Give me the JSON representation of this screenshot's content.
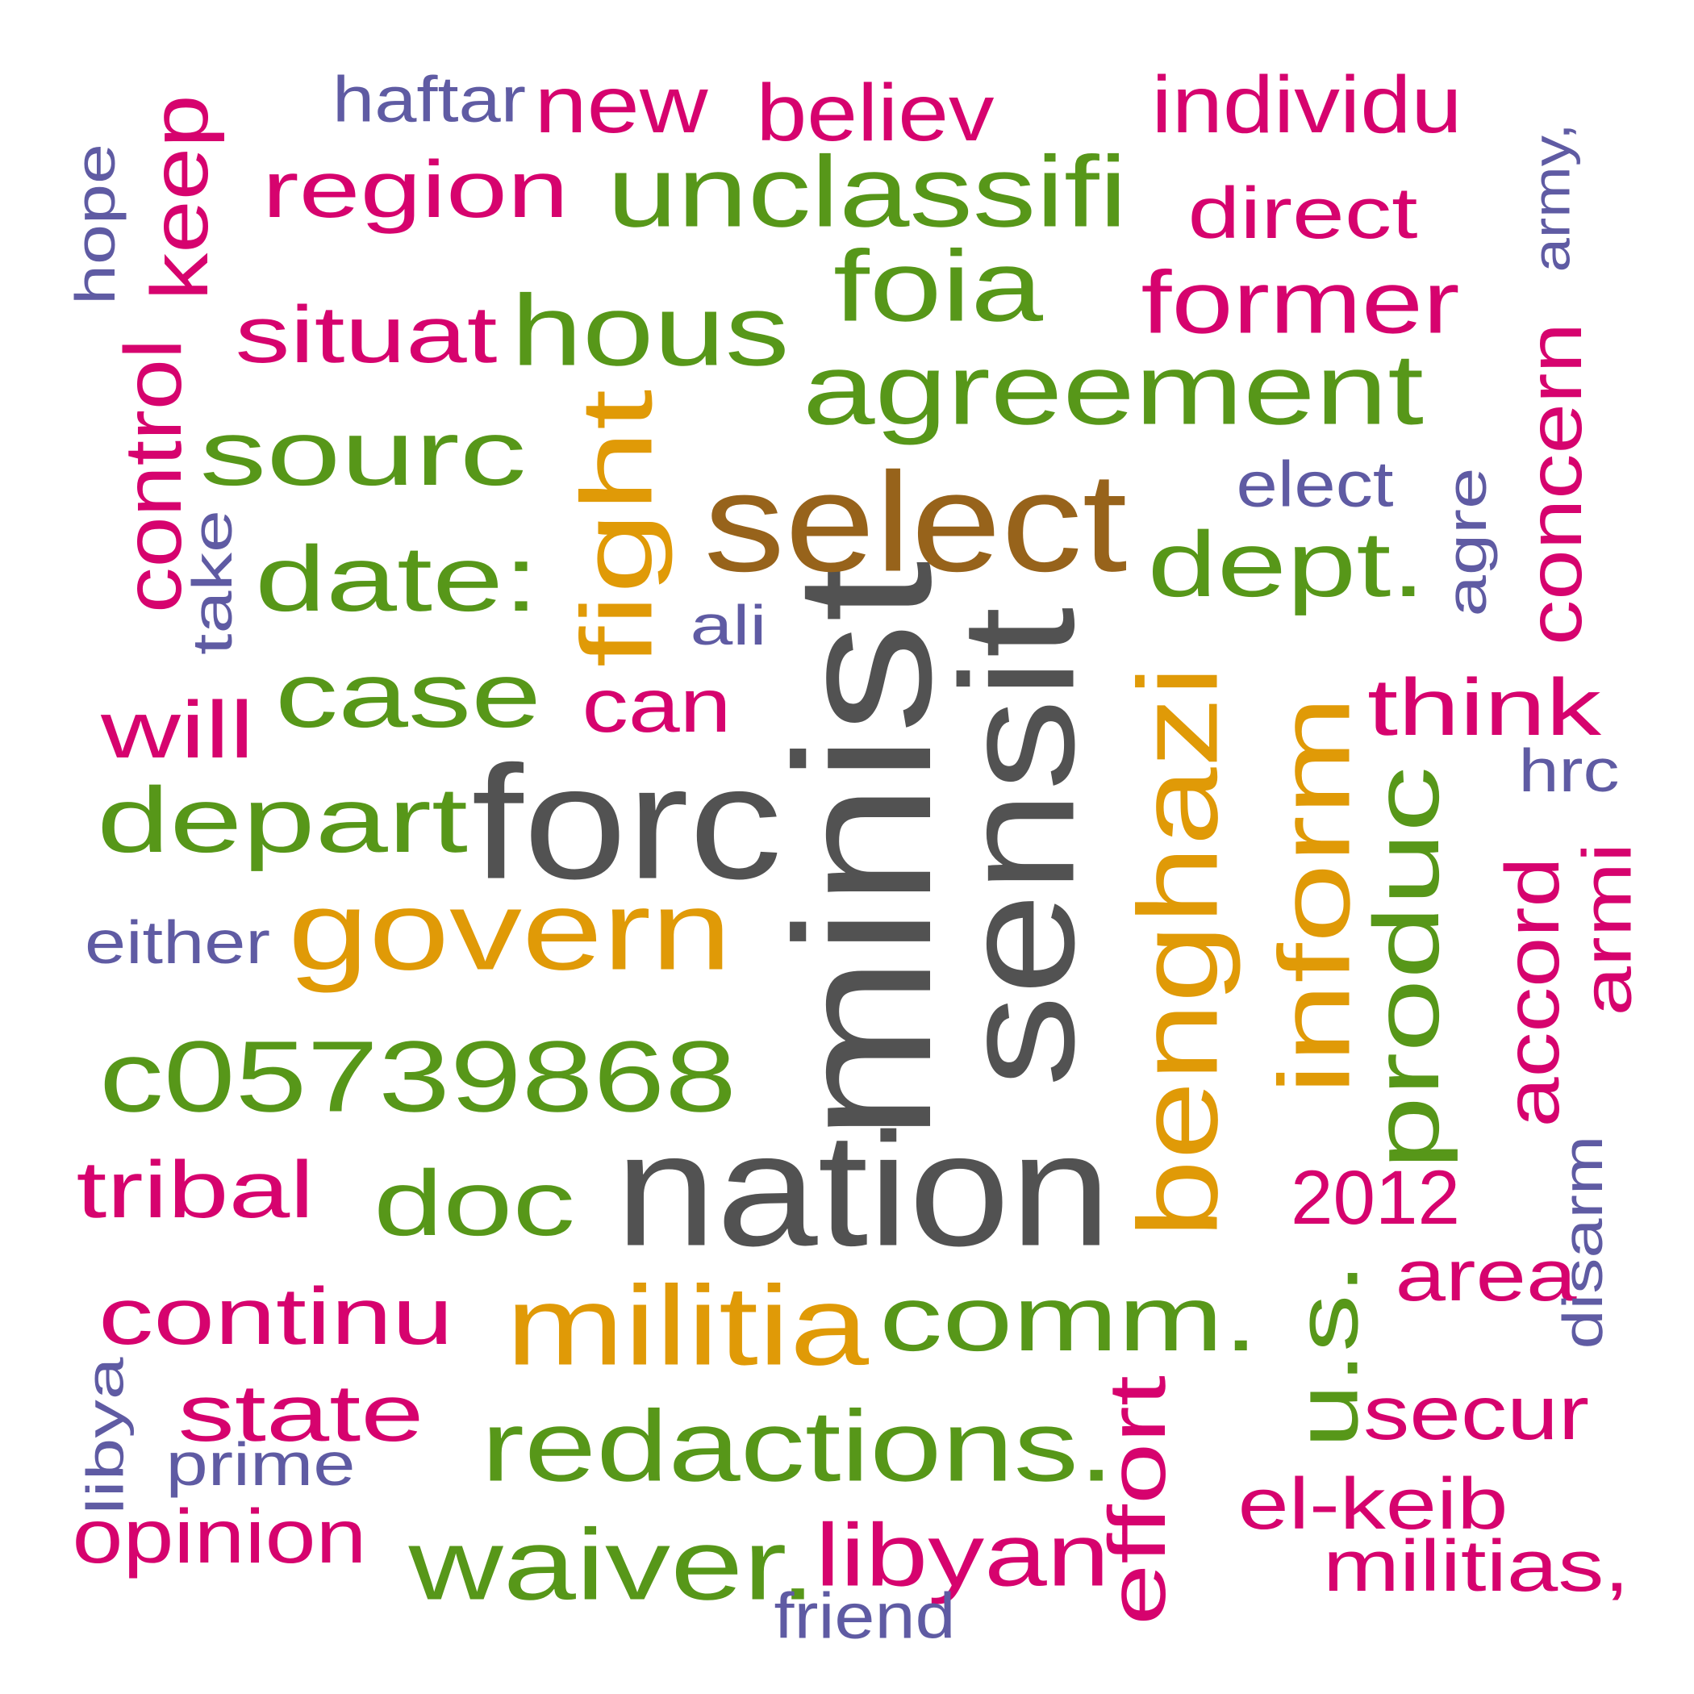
{
  "palette": {
    "gray": "#525252",
    "brown": "#97631b",
    "orange": "#e09a07",
    "green": "#579719",
    "magenta": "#d6036e",
    "purple": "#5f5ba3"
  },
  "words": [
    {
      "text": "minist",
      "color": "gray",
      "rotation": "vertical"
    },
    {
      "text": "sensit",
      "color": "gray",
      "rotation": "vertical"
    },
    {
      "text": "nation",
      "color": "gray",
      "rotation": "horizontal"
    },
    {
      "text": "forc",
      "color": "gray",
      "rotation": "horizontal"
    },
    {
      "text": "select",
      "color": "brown",
      "rotation": "horizontal"
    },
    {
      "text": "benghazi",
      "color": "orange",
      "rotation": "vertical"
    },
    {
      "text": "inform",
      "color": "orange",
      "rotation": "vertical"
    },
    {
      "text": "fight",
      "color": "orange",
      "rotation": "vertical"
    },
    {
      "text": "govern",
      "color": "orange",
      "rotation": "horizontal"
    },
    {
      "text": "militia",
      "color": "orange",
      "rotation": "horizontal"
    },
    {
      "text": "unclassifi",
      "color": "green",
      "rotation": "horizontal"
    },
    {
      "text": "foia",
      "color": "green",
      "rotation": "horizontal"
    },
    {
      "text": "agreement",
      "color": "green",
      "rotation": "horizontal"
    },
    {
      "text": "hous",
      "color": "green",
      "rotation": "horizontal"
    },
    {
      "text": "sourc",
      "color": "green",
      "rotation": "horizontal"
    },
    {
      "text": "date:",
      "color": "green",
      "rotation": "horizontal"
    },
    {
      "text": "dept.",
      "color": "green",
      "rotation": "horizontal"
    },
    {
      "text": "case",
      "color": "green",
      "rotation": "horizontal"
    },
    {
      "text": "depart",
      "color": "green",
      "rotation": "horizontal"
    },
    {
      "text": "produc",
      "color": "green",
      "rotation": "vertical"
    },
    {
      "text": "c05739868",
      "color": "green",
      "rotation": "horizontal"
    },
    {
      "text": "doc",
      "color": "green",
      "rotation": "horizontal"
    },
    {
      "text": "comm.",
      "color": "green",
      "rotation": "horizontal"
    },
    {
      "text": "u.s.",
      "color": "green",
      "rotation": "vertical"
    },
    {
      "text": "redactions.",
      "color": "green",
      "rotation": "horizontal"
    },
    {
      "text": "waiver.",
      "color": "green",
      "rotation": "horizontal"
    },
    {
      "text": "region",
      "color": "magenta",
      "rotation": "horizontal"
    },
    {
      "text": "new",
      "color": "magenta",
      "rotation": "horizontal"
    },
    {
      "text": "believ",
      "color": "magenta",
      "rotation": "horizontal"
    },
    {
      "text": "individu",
      "color": "magenta",
      "rotation": "horizontal"
    },
    {
      "text": "direct",
      "color": "magenta",
      "rotation": "horizontal"
    },
    {
      "text": "former",
      "color": "magenta",
      "rotation": "horizontal"
    },
    {
      "text": "keep",
      "color": "magenta",
      "rotation": "vertical"
    },
    {
      "text": "situat",
      "color": "magenta",
      "rotation": "horizontal"
    },
    {
      "text": "control",
      "color": "magenta",
      "rotation": "vertical"
    },
    {
      "text": "concern",
      "color": "magenta",
      "rotation": "vertical"
    },
    {
      "text": "think",
      "color": "magenta",
      "rotation": "horizontal"
    },
    {
      "text": "will",
      "color": "magenta",
      "rotation": "horizontal"
    },
    {
      "text": "can",
      "color": "magenta",
      "rotation": "horizontal"
    },
    {
      "text": "accord",
      "color": "magenta",
      "rotation": "vertical"
    },
    {
      "text": "armi",
      "color": "magenta",
      "rotation": "vertical"
    },
    {
      "text": "tribal",
      "color": "magenta",
      "rotation": "horizontal"
    },
    {
      "text": "2012",
      "color": "magenta",
      "rotation": "horizontal"
    },
    {
      "text": "area",
      "color": "magenta",
      "rotation": "horizontal"
    },
    {
      "text": "continu",
      "color": "magenta",
      "rotation": "horizontal"
    },
    {
      "text": "state",
      "color": "magenta",
      "rotation": "horizontal"
    },
    {
      "text": "effort",
      "color": "magenta",
      "rotation": "vertical"
    },
    {
      "text": "secur",
      "color": "magenta",
      "rotation": "horizontal"
    },
    {
      "text": "el-keib",
      "color": "magenta",
      "rotation": "horizontal"
    },
    {
      "text": "libyan",
      "color": "magenta",
      "rotation": "horizontal"
    },
    {
      "text": "opinion",
      "color": "magenta",
      "rotation": "horizontal"
    },
    {
      "text": "militias,",
      "color": "magenta",
      "rotation": "horizontal"
    },
    {
      "text": "haftar",
      "color": "purple",
      "rotation": "horizontal"
    },
    {
      "text": "hope",
      "color": "purple",
      "rotation": "vertical"
    },
    {
      "text": "army,",
      "color": "purple",
      "rotation": "vertical"
    },
    {
      "text": "elect",
      "color": "purple",
      "rotation": "horizontal"
    },
    {
      "text": "agre",
      "color": "purple",
      "rotation": "vertical"
    },
    {
      "text": "take",
      "color": "purple",
      "rotation": "vertical"
    },
    {
      "text": "ali",
      "color": "purple",
      "rotation": "horizontal"
    },
    {
      "text": "hrc",
      "color": "purple",
      "rotation": "horizontal"
    },
    {
      "text": "either",
      "color": "purple",
      "rotation": "horizontal"
    },
    {
      "text": "disarm",
      "color": "purple",
      "rotation": "vertical"
    },
    {
      "text": "libya",
      "color": "purple",
      "rotation": "vertical"
    },
    {
      "text": "prime",
      "color": "purple",
      "rotation": "horizontal"
    },
    {
      "text": "friend",
      "color": "purple",
      "rotation": "horizontal"
    }
  ]
}
